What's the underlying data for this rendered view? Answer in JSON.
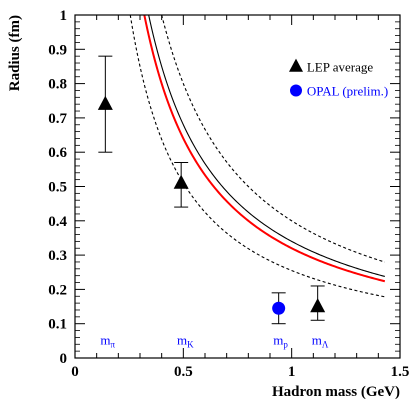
{
  "chart_data": {
    "type": "scatter",
    "xlabel": "Hadron mass (GeV)",
    "ylabel": "Radius (fm)",
    "xlim": [
      0,
      1.5
    ],
    "ylim": [
      0,
      1
    ],
    "x_ticks": [
      "0",
      "0.5",
      "1",
      "1.5"
    ],
    "y_ticks": [
      "0",
      "0.1",
      "0.2",
      "0.3",
      "0.4",
      "0.5",
      "0.6",
      "0.7",
      "0.8",
      "0.9",
      "1"
    ],
    "grid": false,
    "legend_position": "top-right",
    "series": [
      {
        "name": "LEP average",
        "marker": "triangle",
        "color": "#000000",
        "points": [
          {
            "x": 0.14,
            "y": 0.74,
            "ylow": 0.6,
            "yhigh": 0.88
          },
          {
            "x": 0.49,
            "y": 0.51,
            "ylow": 0.44,
            "yhigh": 0.57
          },
          {
            "x": 1.12,
            "y": 0.15,
            "ylow": 0.11,
            "yhigh": 0.21
          }
        ]
      },
      {
        "name": "OPAL (prelim.)",
        "marker": "circle",
        "color": "#0000ff",
        "points": [
          {
            "x": 0.94,
            "y": 0.145,
            "ylow": 0.1,
            "yhigh": 0.19
          }
        ]
      }
    ],
    "curves": [
      {
        "style": "solid",
        "color": "#000000",
        "k": 0.34
      },
      {
        "style": "solid",
        "color": "#ff0000",
        "k": 0.32
      },
      {
        "style": "dashed",
        "color": "#000000",
        "k": 0.4
      },
      {
        "style": "dashed",
        "color": "#000000",
        "k": 0.255
      }
    ],
    "mass_labels": [
      {
        "base": "m",
        "sub": "π",
        "x": 0.14
      },
      {
        "base": "m",
        "sub": "K",
        "x": 0.494
      },
      {
        "base": "m",
        "sub": "p",
        "x": 0.938
      },
      {
        "base": "m",
        "sub": "Λ",
        "x": 1.116
      }
    ],
    "mass_label_color": "#0000ff"
  }
}
